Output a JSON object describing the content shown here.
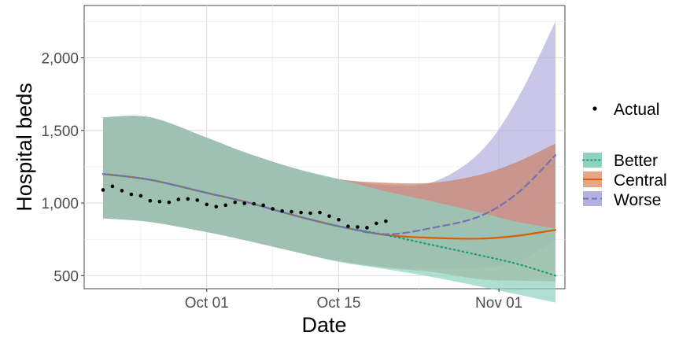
{
  "chart_data": {
    "type": "line",
    "xlabel": "Date",
    "ylabel": "Hospital beds",
    "x_tick_labels": [
      "Oct 01",
      "Oct 15",
      "Nov 01"
    ],
    "x_tick_dates": [
      "2020-10-01",
      "2020-10-15",
      "2020-11-01"
    ],
    "xlim": [
      "2020-09-18",
      "2020-11-08"
    ],
    "y_tick_labels": [
      "500",
      "1,000",
      "1,500",
      "2,000"
    ],
    "y_ticks": [
      500,
      1000,
      1500,
      2000
    ],
    "ylim": [
      410,
      2360
    ],
    "grid": true,
    "legend_position": "right",
    "legend_title": "",
    "actual": {
      "name": "Actual",
      "color": "#000000",
      "points": [
        {
          "x": "2020-09-20",
          "y": 1090
        },
        {
          "x": "2020-09-21",
          "y": 1115
        },
        {
          "x": "2020-09-22",
          "y": 1085
        },
        {
          "x": "2020-09-23",
          "y": 1060
        },
        {
          "x": "2020-09-24",
          "y": 1050
        },
        {
          "x": "2020-09-25",
          "y": 1015
        },
        {
          "x": "2020-09-26",
          "y": 1010
        },
        {
          "x": "2020-09-27",
          "y": 1005
        },
        {
          "x": "2020-09-28",
          "y": 1025
        },
        {
          "x": "2020-09-29",
          "y": 1028
        },
        {
          "x": "2020-09-30",
          "y": 1020
        },
        {
          "x": "2020-10-01",
          "y": 990
        },
        {
          "x": "2020-10-02",
          "y": 975
        },
        {
          "x": "2020-10-03",
          "y": 985
        },
        {
          "x": "2020-10-04",
          "y": 1005
        },
        {
          "x": "2020-10-05",
          "y": 998
        },
        {
          "x": "2020-10-06",
          "y": 995
        },
        {
          "x": "2020-10-07",
          "y": 985
        },
        {
          "x": "2020-10-08",
          "y": 960
        },
        {
          "x": "2020-10-09",
          "y": 945
        },
        {
          "x": "2020-10-10",
          "y": 940
        },
        {
          "x": "2020-10-11",
          "y": 935
        },
        {
          "x": "2020-10-12",
          "y": 930
        },
        {
          "x": "2020-10-13",
          "y": 935
        },
        {
          "x": "2020-10-14",
          "y": 910
        },
        {
          "x": "2020-10-15",
          "y": 885
        },
        {
          "x": "2020-10-16",
          "y": 840
        },
        {
          "x": "2020-10-17",
          "y": 835
        },
        {
          "x": "2020-10-18",
          "y": 830
        },
        {
          "x": "2020-10-19",
          "y": 860
        },
        {
          "x": "2020-10-20",
          "y": 875
        }
      ]
    },
    "x": [
      "2020-09-20",
      "2020-09-25",
      "2020-10-01",
      "2020-10-05",
      "2020-10-10",
      "2020-10-15",
      "2020-10-20",
      "2020-10-25",
      "2020-10-30",
      "2020-11-03",
      "2020-11-07"
    ],
    "series": [
      {
        "name": "Better",
        "color": "#1b9e77",
        "fill": "#8fd3bf",
        "line_style": "dotted",
        "values": [
          1200,
          1160,
          1070,
          1010,
          920,
          840,
          780,
          710,
          640,
          580,
          500
        ],
        "lower": [
          895,
          870,
          800,
          745,
          670,
          595,
          545,
          490,
          425,
          370,
          315
        ],
        "upper": [
          1590,
          1590,
          1450,
          1350,
          1245,
          1165,
          1080,
          1010,
          935,
          870,
          825
        ]
      },
      {
        "name": "Central",
        "color": "#d95f02",
        "fill": "#c9826a",
        "line_style": "solid",
        "values": [
          1200,
          1160,
          1070,
          1010,
          920,
          840,
          780,
          760,
          755,
          775,
          815
        ],
        "lower": [
          895,
          870,
          800,
          745,
          670,
          600,
          555,
          525,
          475,
          465,
          460
        ],
        "upper": [
          1590,
          1590,
          1450,
          1350,
          1245,
          1165,
          1140,
          1140,
          1195,
          1285,
          1410
        ]
      },
      {
        "name": "Worse",
        "color": "#7570b3",
        "fill": "#b3b2de",
        "line_style": "dashed",
        "values": [
          1200,
          1160,
          1070,
          1010,
          920,
          840,
          785,
          830,
          910,
          1070,
          1330
        ],
        "lower": [
          895,
          870,
          800,
          745,
          670,
          600,
          560,
          550,
          550,
          600,
          740
        ],
        "upper": [
          1590,
          1590,
          1450,
          1350,
          1245,
          1165,
          1125,
          1145,
          1350,
          1720,
          2250
        ]
      }
    ]
  }
}
